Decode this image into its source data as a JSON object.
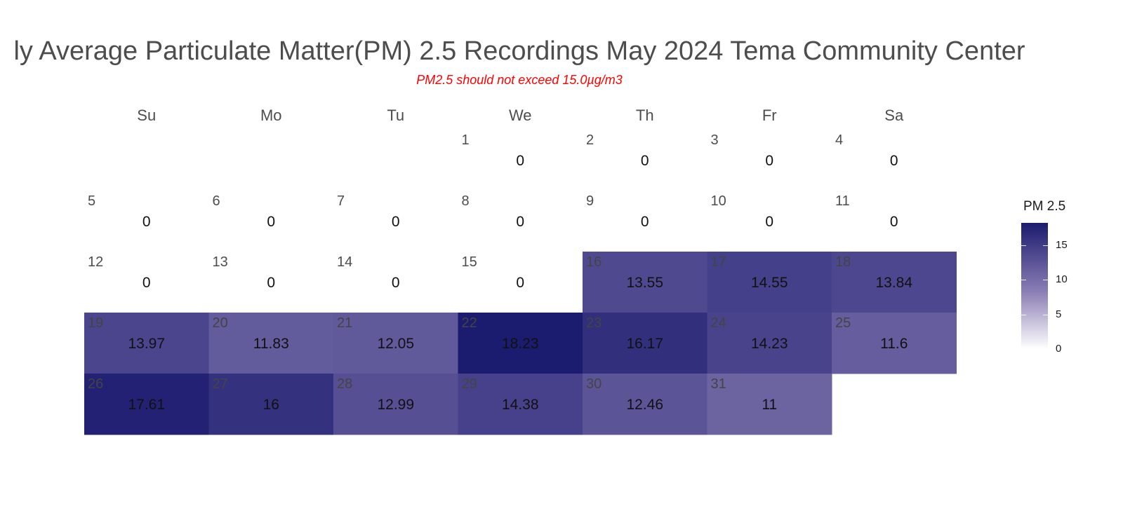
{
  "title": "ly Average Particulate Matter(PM) 2.5 Recordings May 2024 Tema Community Center",
  "subtitle": "PM2.5 should not exceed 15.0µg/m3",
  "colors": {
    "subtitle": "#ff0000",
    "title": "#4d4d4d",
    "low": "#ffffff",
    "high": "#1b1b6f"
  },
  "chart_data": {
    "type": "heatmap",
    "weekdays": [
      "Su",
      "Mo",
      "Tu",
      "We",
      "Th",
      "Fr",
      "Sa"
    ],
    "first_weekday_index": 3,
    "days": [
      1,
      2,
      3,
      4,
      5,
      6,
      7,
      8,
      9,
      10,
      11,
      12,
      13,
      14,
      15,
      16,
      17,
      18,
      19,
      20,
      21,
      22,
      23,
      24,
      25,
      26,
      27,
      28,
      29,
      30,
      31
    ],
    "values": [
      0,
      0,
      0,
      0,
      0,
      0,
      0,
      0,
      0,
      0,
      0,
      0,
      0,
      0,
      0,
      13.55,
      14.55,
      13.84,
      13.97,
      11.83,
      12.05,
      18.23,
      16.17,
      14.23,
      11.6,
      17.61,
      16,
      12.99,
      14.38,
      12.46,
      11
    ],
    "legend": {
      "title": "PM 2.5",
      "ticks": [
        0,
        5,
        10,
        15
      ],
      "range": [
        0,
        18.23
      ]
    }
  }
}
